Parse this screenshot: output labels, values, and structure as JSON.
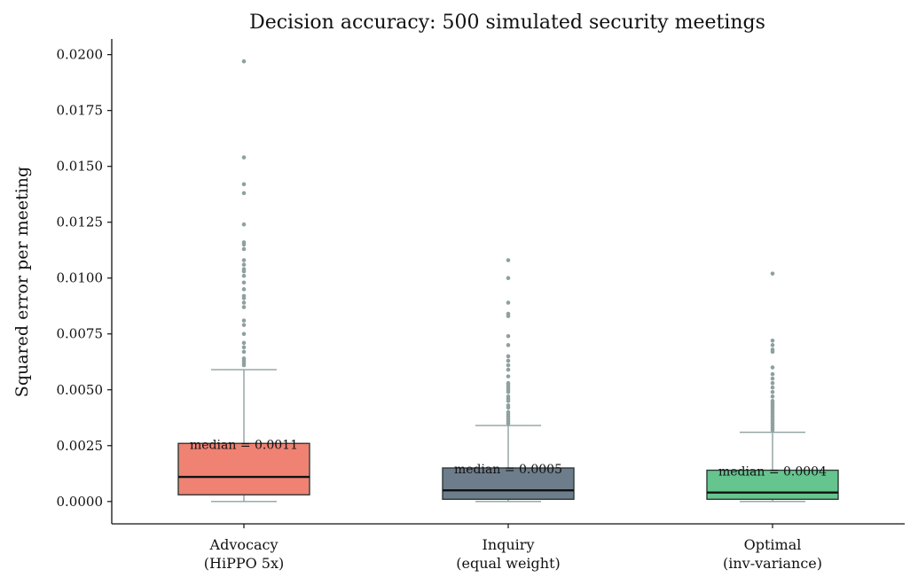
{
  "chart_data": {
    "type": "box",
    "title": "Decision accuracy: 500 simulated security meetings",
    "xlabel": "",
    "ylabel": "Squared error per meeting",
    "ylim": [
      -0.001,
      0.0207
    ],
    "yticks": [
      0.0,
      0.0025,
      0.005,
      0.0075,
      0.01,
      0.0125,
      0.015,
      0.0175,
      0.02
    ],
    "ytick_labels": [
      "0.0000",
      "0.0025",
      "0.0050",
      "0.0075",
      "0.0100",
      "0.0125",
      "0.0150",
      "0.0175",
      "0.0200"
    ],
    "grid": false,
    "categories": [
      {
        "line1": "Advocacy",
        "line2": "(HiPPO 5x)",
        "color": "#ef8273",
        "q1": 0.0003,
        "median": 0.0011,
        "q3": 0.0026,
        "whisker_low": 0.0,
        "whisker_high": 0.0059,
        "annotation": "median = 0.0011",
        "outliers": [
          0.0197,
          0.0154,
          0.0142,
          0.0138,
          0.0124,
          0.0116,
          0.0115,
          0.0113,
          0.0108,
          0.0106,
          0.0104,
          0.0103,
          0.0101,
          0.0098,
          0.0095,
          0.0092,
          0.0091,
          0.0089,
          0.0087,
          0.0081,
          0.0079,
          0.0075,
          0.0071,
          0.0069,
          0.0067,
          0.0064,
          0.0063,
          0.0062,
          0.0061
        ]
      },
      {
        "line1": "Inquiry",
        "line2": "(equal weight)",
        "color": "#6e7d8c",
        "q1": 0.0001,
        "median": 0.0005,
        "q3": 0.0015,
        "whisker_low": 0.0,
        "whisker_high": 0.0034,
        "annotation": "median = 0.0005",
        "outliers": [
          0.0108,
          0.01,
          0.0089,
          0.0084,
          0.0083,
          0.0074,
          0.007,
          0.0065,
          0.0063,
          0.0061,
          0.0059,
          0.0056,
          0.0053,
          0.0052,
          0.0051,
          0.005,
          0.0049,
          0.0047,
          0.0046,
          0.0045,
          0.0043,
          0.0042,
          0.004,
          0.0039,
          0.0038,
          0.0037,
          0.0036,
          0.0035
        ]
      },
      {
        "line1": "Optimal",
        "line2": "(inv-variance)",
        "color": "#66c48e",
        "q1": 0.0001,
        "median": 0.0004,
        "q3": 0.0014,
        "whisker_low": 0.0,
        "whisker_high": 0.0031,
        "annotation": "median = 0.0004",
        "outliers": [
          0.0102,
          0.0072,
          0.007,
          0.0068,
          0.0067,
          0.006,
          0.0057,
          0.0055,
          0.0053,
          0.0051,
          0.0049,
          0.0047,
          0.0045,
          0.0044,
          0.0043,
          0.0042,
          0.0041,
          0.004,
          0.0039,
          0.0038,
          0.0037,
          0.0036,
          0.0035,
          0.0034,
          0.0033,
          0.0032
        ]
      }
    ],
    "colors": {
      "box_edge": "#2b3a35",
      "median_line": "#111111",
      "whisker": "#8fa0a0",
      "outlier": "#8fa0a0",
      "axis": "#111111"
    }
  }
}
